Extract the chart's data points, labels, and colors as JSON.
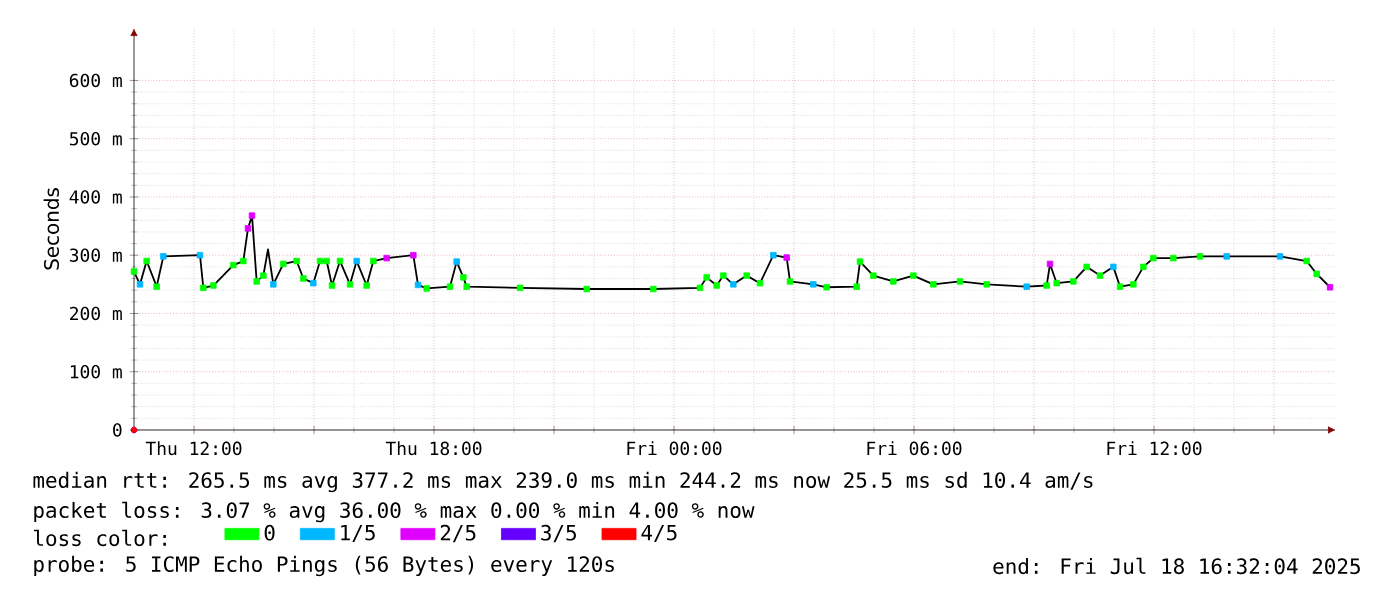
{
  "chart_data": {
    "type": "line",
    "ylabel": "Seconds",
    "xlim": [
      "2025-07-17T10:30",
      "2025-07-18T16:33"
    ],
    "xticks": [
      {
        "value": "2025-07-17T12:00",
        "label": "Thu 12:00"
      },
      {
        "value": "2025-07-17T15:00",
        "label": null
      },
      {
        "value": "2025-07-17T18:00",
        "label": "Thu 18:00"
      },
      {
        "value": "2025-07-17T21:00",
        "label": null
      },
      {
        "value": "2025-07-18T00:00",
        "label": "Fri 00:00"
      },
      {
        "value": "2025-07-18T03:00",
        "label": null
      },
      {
        "value": "2025-07-18T06:00",
        "label": "Fri 06:00"
      },
      {
        "value": "2025-07-18T09:00",
        "label": null
      },
      {
        "value": "2025-07-18T12:00",
        "label": "Fri 12:00"
      },
      {
        "value": "2025-07-18T15:00",
        "label": null
      }
    ],
    "ylim": [
      0,
      690
    ],
    "yticks": [
      0,
      {
        "value": 100,
        "label": "100 m"
      },
      {
        "value": 200,
        "label": "200 m"
      },
      {
        "value": 300,
        "label": "300 m"
      },
      {
        "value": 400,
        "label": "400 m"
      },
      {
        "value": 500,
        "label": "500 m"
      },
      {
        "value": 600,
        "label": "600 m"
      }
    ],
    "grid": true,
    "legend": "bottom",
    "legend_title": "loss color:",
    "series": [
      {
        "color": "#000000",
        "x": [
          "2025-07-17T10:30",
          "2025-07-17T10:39",
          "2025-07-17T10:49",
          "2025-07-17T11:04",
          "2025-07-17T11:14",
          "2025-07-17T12:09",
          "2025-07-17T12:14",
          "2025-07-17T12:29",
          "2025-07-17T12:59",
          "2025-07-17T13:14",
          "2025-07-17T13:21",
          "2025-07-17T13:27",
          "2025-07-17T13:34",
          "2025-07-17T13:44",
          "2025-07-17T13:51",
          "2025-07-17T13:59",
          "2025-07-17T14:14",
          "2025-07-17T14:34",
          "2025-07-17T14:44",
          "2025-07-17T14:59",
          "2025-07-17T15:09",
          "2025-07-17T15:19",
          "2025-07-17T15:27",
          "2025-07-17T15:39",
          "2025-07-17T15:54",
          "2025-07-17T16:04",
          "2025-07-17T16:19",
          "2025-07-17T16:29",
          "2025-07-17T16:49",
          "2025-07-17T17:29",
          "2025-07-17T17:36",
          "2025-07-17T17:49",
          "2025-07-17T18:24",
          "2025-07-17T18:34",
          "2025-07-17T18:44",
          "2025-07-17T18:49",
          "2025-07-17T20:09",
          "2025-07-17T21:49",
          "2025-07-17T23:29",
          "2025-07-18T00:39",
          "2025-07-18T00:49",
          "2025-07-18T01:04",
          "2025-07-18T01:14",
          "2025-07-18T01:29",
          "2025-07-18T01:49",
          "2025-07-18T02:09",
          "2025-07-18T02:29",
          "2025-07-18T02:49",
          "2025-07-18T02:54",
          "2025-07-18T03:29",
          "2025-07-18T03:49",
          "2025-07-18T04:34",
          "2025-07-18T04:39",
          "2025-07-18T04:59",
          "2025-07-18T05:29",
          "2025-07-18T05:59",
          "2025-07-18T06:29",
          "2025-07-18T07:09",
          "2025-07-18T07:49",
          "2025-07-18T08:49",
          "2025-07-18T09:19",
          "2025-07-18T09:24",
          "2025-07-18T09:34",
          "2025-07-18T09:59",
          "2025-07-18T10:19",
          "2025-07-18T10:39",
          "2025-07-18T10:59",
          "2025-07-18T11:09",
          "2025-07-18T11:29",
          "2025-07-18T11:44",
          "2025-07-18T11:59",
          "2025-07-18T12:29",
          "2025-07-18T13:09",
          "2025-07-18T13:49",
          "2025-07-18T15:09",
          "2025-07-18T15:49",
          "2025-07-18T16:04",
          "2025-07-18T16:24"
        ],
        "values": [
          272,
          250,
          290,
          246,
          298,
          300,
          244,
          248,
          283,
          290,
          346,
          368,
          255,
          265,
          310,
          250,
          285,
          290,
          260,
          252,
          290,
          290,
          248,
          290,
          250,
          290,
          248,
          290,
          295,
          300,
          249,
          243,
          246,
          289,
          262,
          246,
          244,
          242,
          242,
          244,
          262,
          248,
          265,
          250,
          265,
          252,
          300,
          296,
          255,
          250,
          245,
          246,
          289,
          265,
          255,
          265,
          250,
          255,
          250,
          246,
          248,
          285,
          252,
          255,
          280,
          265,
          280,
          246,
          250,
          280,
          295,
          295,
          298,
          298,
          298,
          290,
          268,
          245
        ]
      },
      {
        "type": "scatter",
        "name": "0",
        "color": "#00ff00",
        "x": [
          "2025-07-17T10:30",
          "2025-07-17T10:49",
          "2025-07-17T11:04",
          "2025-07-17T12:14",
          "2025-07-17T12:29",
          "2025-07-17T12:59",
          "2025-07-17T13:14",
          "2025-07-17T13:34",
          "2025-07-17T13:44",
          "2025-07-17T14:14",
          "2025-07-17T14:34",
          "2025-07-17T14:44",
          "2025-07-17T15:09",
          "2025-07-17T15:19",
          "2025-07-17T15:27",
          "2025-07-17T15:39",
          "2025-07-17T15:54",
          "2025-07-17T16:19",
          "2025-07-17T16:29",
          "2025-07-17T17:49",
          "2025-07-17T18:24",
          "2025-07-17T18:44",
          "2025-07-17T18:49",
          "2025-07-17T20:09",
          "2025-07-17T21:49",
          "2025-07-17T23:29",
          "2025-07-18T00:39",
          "2025-07-18T00:49",
          "2025-07-18T01:04",
          "2025-07-18T01:14",
          "2025-07-18T01:49",
          "2025-07-18T02:09",
          "2025-07-18T02:54",
          "2025-07-18T03:49",
          "2025-07-18T04:34",
          "2025-07-18T04:39",
          "2025-07-18T04:59",
          "2025-07-18T05:29",
          "2025-07-18T05:59",
          "2025-07-18T06:29",
          "2025-07-18T07:09",
          "2025-07-18T07:49",
          "2025-07-18T09:19",
          "2025-07-18T09:34",
          "2025-07-18T09:59",
          "2025-07-18T10:19",
          "2025-07-18T10:39",
          "2025-07-18T11:09",
          "2025-07-18T11:29",
          "2025-07-18T11:44",
          "2025-07-18T11:59",
          "2025-07-18T12:29",
          "2025-07-18T13:09",
          "2025-07-18T15:49",
          "2025-07-18T16:04"
        ],
        "values": [
          272,
          290,
          246,
          244,
          248,
          283,
          290,
          255,
          265,
          285,
          290,
          260,
          290,
          290,
          248,
          290,
          250,
          248,
          290,
          243,
          246,
          262,
          246,
          244,
          242,
          242,
          244,
          262,
          248,
          265,
          265,
          252,
          255,
          245,
          246,
          289,
          265,
          255,
          265,
          250,
          255,
          250,
          248,
          252,
          255,
          280,
          265,
          246,
          250,
          280,
          295,
          295,
          298,
          290,
          268
        ]
      },
      {
        "type": "scatter",
        "name": "1/5",
        "color": "#00b8ff",
        "x": [
          "2025-07-17T10:39",
          "2025-07-17T11:14",
          "2025-07-17T12:09",
          "2025-07-17T13:59",
          "2025-07-17T14:59",
          "2025-07-17T16:04",
          "2025-07-17T17:36",
          "2025-07-17T18:34",
          "2025-07-18T01:29",
          "2025-07-18T02:29",
          "2025-07-18T03:29",
          "2025-07-18T08:49",
          "2025-07-18T10:59",
          "2025-07-18T13:49",
          "2025-07-18T15:09"
        ],
        "values": [
          250,
          298,
          300,
          250,
          252,
          290,
          249,
          289,
          250,
          300,
          250,
          246,
          280,
          298,
          298
        ]
      },
      {
        "type": "scatter",
        "name": "2/5",
        "color": "#e000ff",
        "x": [
          "2025-07-17T13:21",
          "2025-07-17T13:27",
          "2025-07-17T16:49",
          "2025-07-17T17:29",
          "2025-07-18T02:49",
          "2025-07-18T09:24",
          "2025-07-18T16:24"
        ],
        "values": [
          346,
          368,
          295,
          300,
          296,
          285,
          245
        ]
      },
      {
        "type": "scatter",
        "name": "3/5",
        "color": "#6600ff"
      },
      {
        "type": "scatter",
        "name": "4/5",
        "color": "#ff0000"
      }
    ],
    "annotations": [
      "median rtt: 265.5 ms avg 377.2 ms max 239.0 ms min 244.2 ms now 25.5 ms sd 10.4 am/s",
      "packet loss: 3.07 % avg 36.00 % max 0.00 % min 4.00 % now",
      "probe: 5 ICMP Echo Pings (56 Bytes) every 120s",
      "end: Fri Jul 18 16:32:04 2025"
    ]
  }
}
